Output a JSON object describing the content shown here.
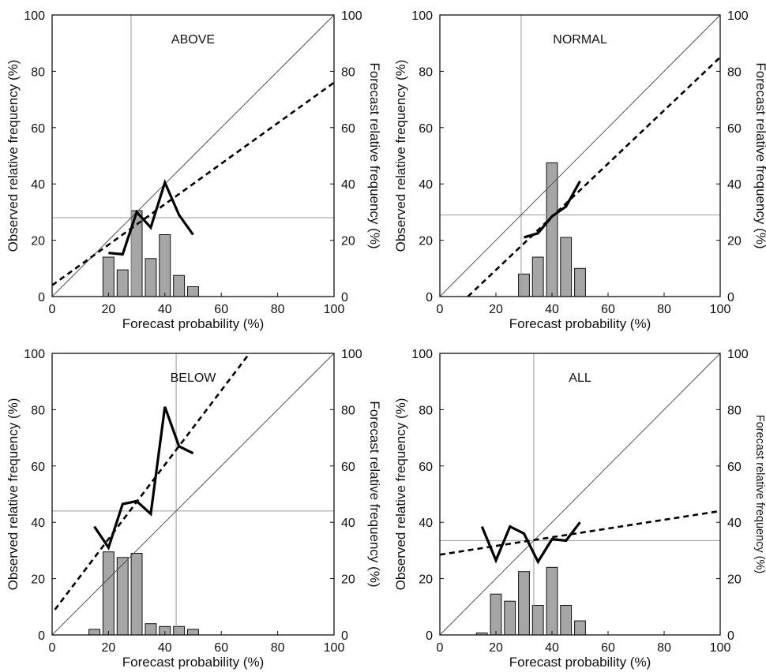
{
  "chart_data": [
    {
      "type": "reliability-diagram",
      "title": "ABOVE",
      "xlabel": "Forecast probability (%)",
      "ylabel": "Observed relative frequency (%)",
      "y2label": "Forecast relative frequency (%)",
      "xlim": [
        0,
        100
      ],
      "ylim": [
        0,
        100
      ],
      "y2lim": [
        0,
        100
      ],
      "xticks": [
        0,
        20,
        40,
        60,
        80,
        100
      ],
      "yticks": [
        0,
        20,
        40,
        60,
        80,
        100
      ],
      "climatology": 28,
      "reliability": {
        "x": [
          20,
          25,
          30,
          35,
          40,
          45,
          50
        ],
        "y": [
          15.5,
          15,
          30,
          24.5,
          40.5,
          29,
          22
        ]
      },
      "regression": {
        "x": [
          0,
          100
        ],
        "y": [
          4,
          76
        ]
      },
      "histogram": {
        "x": [
          20,
          25,
          30,
          35,
          40,
          45,
          50
        ],
        "y": [
          14,
          9.5,
          30.5,
          13.5,
          22,
          7.5,
          3.5
        ]
      }
    },
    {
      "type": "reliability-diagram",
      "title": "NORMAL",
      "xlabel": "Forecast probability (%)",
      "ylabel": "Observed relative frequency (%)",
      "y2label": "Forecast relative frequency (%)",
      "xlim": [
        0,
        100
      ],
      "ylim": [
        0,
        100
      ],
      "y2lim": [
        0,
        100
      ],
      "xticks": [
        0,
        20,
        40,
        60,
        80,
        100
      ],
      "yticks": [
        0,
        20,
        40,
        60,
        80,
        100
      ],
      "climatology": 29,
      "reliability": {
        "x": [
          30,
          35,
          40,
          45,
          50
        ],
        "y": [
          21,
          22.5,
          28.5,
          32,
          41
        ]
      },
      "regression": {
        "x": [
          10,
          100
        ],
        "y": [
          0,
          85
        ]
      },
      "histogram": {
        "x": [
          30,
          35,
          40,
          45,
          50
        ],
        "y": [
          8,
          14,
          47.5,
          21,
          10
        ]
      }
    },
    {
      "type": "reliability-diagram",
      "title": "BELOW",
      "xlabel": "Forecast probability (%)",
      "ylabel": "Observed relative frequency (%)",
      "y2label": "Forecast relative frequency (%)",
      "xlim": [
        0,
        100
      ],
      "ylim": [
        0,
        100
      ],
      "y2lim": [
        0,
        100
      ],
      "xticks": [
        0,
        20,
        40,
        60,
        80,
        100
      ],
      "yticks": [
        0,
        20,
        40,
        60,
        80,
        100
      ],
      "climatology": 44,
      "reliability": {
        "x": [
          15,
          20,
          25,
          30,
          35,
          40,
          45,
          50
        ],
        "y": [
          38.5,
          31,
          46.5,
          47.5,
          43,
          81,
          67,
          64.5
        ]
      },
      "regression": {
        "x": [
          1,
          70
        ],
        "y": [
          9,
          100
        ]
      },
      "histogram": {
        "x": [
          15,
          20,
          25,
          30,
          35,
          40,
          45,
          50
        ],
        "y": [
          2,
          29.5,
          27.5,
          29,
          4,
          3,
          3,
          2
        ]
      }
    },
    {
      "type": "reliability-diagram",
      "title": "ALL",
      "xlabel": "Forecast probability (%)",
      "ylabel": "Observed relative frequency (%)",
      "y2label": "Forecast relative frequency (%)",
      "xlim": [
        0,
        100
      ],
      "ylim": [
        0,
        100
      ],
      "y2lim": [
        0,
        100
      ],
      "xticks": [
        0,
        20,
        40,
        60,
        80,
        100
      ],
      "yticks": [
        0,
        20,
        40,
        60,
        80,
        100
      ],
      "climatology": 33.5,
      "reliability": {
        "x": [
          15,
          20,
          25,
          30,
          35,
          40,
          45,
          50
        ],
        "y": [
          38.5,
          26.5,
          38.5,
          36,
          26,
          34,
          33.5,
          40
        ]
      },
      "regression": {
        "x": [
          0,
          100
        ],
        "y": [
          28.5,
          44
        ]
      },
      "histogram": {
        "x": [
          15,
          20,
          25,
          30,
          35,
          40,
          45,
          50
        ],
        "y": [
          0.7,
          14.5,
          12,
          22.5,
          10.5,
          24,
          10.5,
          5
        ]
      }
    }
  ]
}
